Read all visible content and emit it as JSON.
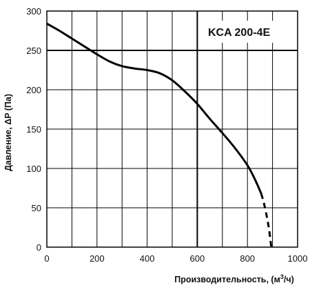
{
  "chart_data": {
    "type": "line",
    "model_label": "KCA 200-4E",
    "xlabel_main": "Производительность, (м",
    "xlabel_sup": "3",
    "xlabel_end": "/ч)",
    "ylabel": "Давление, ΔP (Па)",
    "xlim": [
      0,
      1000
    ],
    "ylim": [
      0,
      300
    ],
    "x_ticks": [
      0,
      200,
      400,
      600,
      800,
      1000
    ],
    "y_ticks": [
      0,
      50,
      100,
      150,
      200,
      250,
      300
    ],
    "x_tick_labels": [
      "0",
      "200",
      "400",
      "600",
      "800",
      "1000"
    ],
    "y_tick_labels": [
      "0",
      "50",
      "100",
      "150",
      "200",
      "250",
      "300"
    ],
    "x_grid_step": 100,
    "y_grid_step": 50,
    "grid": true,
    "bold_gridlines": {
      "x": 600,
      "y": 250
    },
    "series": [
      {
        "style": "solid",
        "x": [
          0,
          50,
          100,
          150,
          200,
          250,
          300,
          350,
          400,
          450,
          500,
          550,
          600,
          650,
          700,
          750,
          800,
          830,
          855
        ],
        "y": [
          284,
          275,
          265,
          255,
          245,
          236,
          230,
          227,
          225,
          221,
          212,
          198,
          182,
          163,
          145,
          126,
          104,
          86,
          68
        ]
      },
      {
        "style": "dashed",
        "x": [
          855,
          870,
          885,
          895
        ],
        "y": [
          68,
          50,
          25,
          0
        ]
      }
    ]
  }
}
